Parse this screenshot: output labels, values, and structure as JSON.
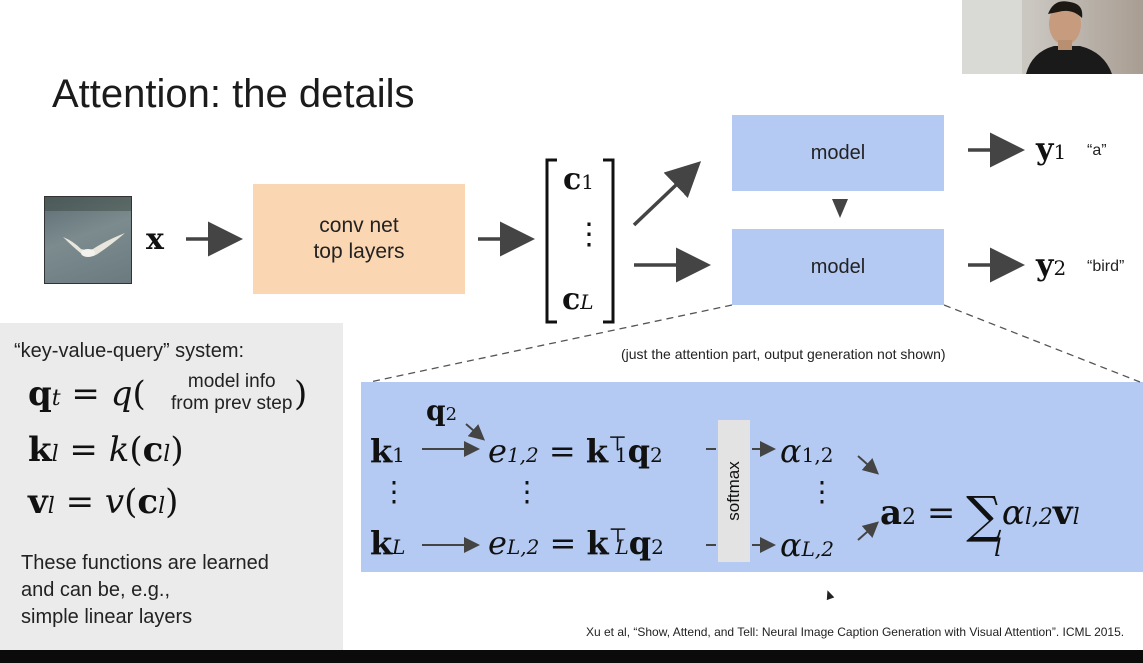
{
  "slide": {
    "title": "Attention: the details",
    "input_symbol": "x",
    "conv_box": {
      "line1": "conv net",
      "line2": "top layers"
    },
    "context_vector": {
      "top": "c",
      "top_sub": "1",
      "dots": "⋮",
      "bottom": "c",
      "bottom_sub": "L"
    },
    "models": [
      {
        "label": "model",
        "output_symbol": "y",
        "output_sub": "1",
        "output_word": "“a”"
      },
      {
        "label": "model",
        "output_symbol": "y",
        "output_sub": "2",
        "output_word": "“bird”"
      }
    ],
    "attention_caption": "(just the attention part, output generation not shown)",
    "left_panel": {
      "heading": "“key-value-query” system:",
      "query_model_info_line1": "model info",
      "query_model_info_line2": "from prev step",
      "note_lines": [
        "These functions are learned",
        "and can be, e.g.,",
        "simple linear layers"
      ]
    },
    "attention_panel": {
      "softmax_label": "softmax",
      "query": "q₂"
    },
    "reference": "Xu et al, “Show, Attend, and Tell: Neural Image Caption Generation with Visual Attention”. ICML 2015."
  },
  "colors": {
    "model_blue": "#b5caf3",
    "conv_orange": "#fbd6b2",
    "panel_gray": "#ebebeb",
    "arrow": "#444444"
  },
  "icons": {
    "input_image": "bird-photo",
    "presenter": "webcam-feed",
    "cursor": "mouse-cursor"
  }
}
